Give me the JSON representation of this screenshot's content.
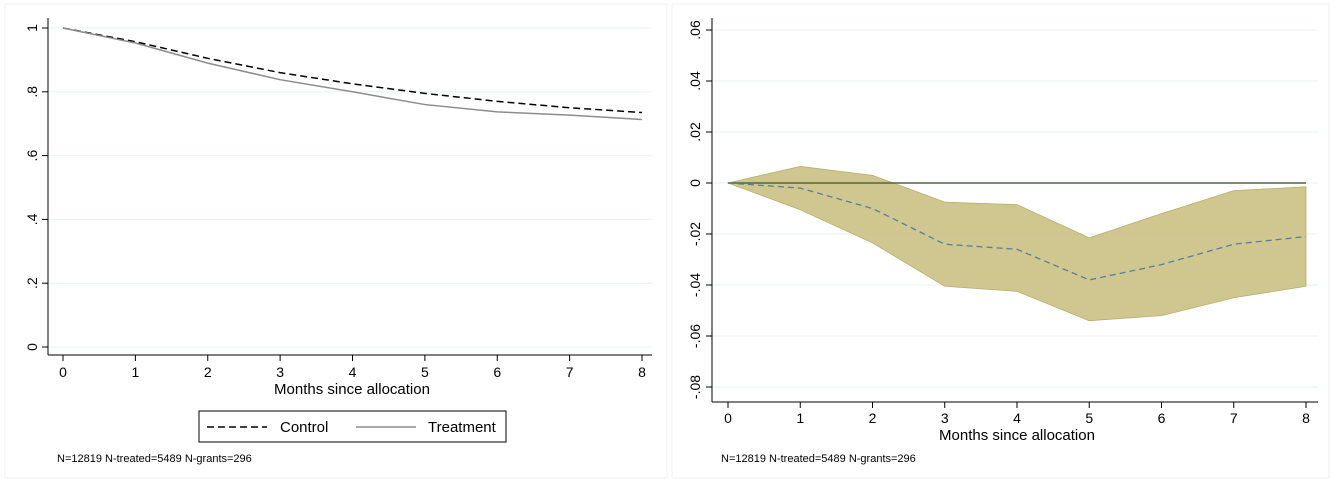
{
  "colors": {
    "background": "#ffffff",
    "gridline": "#eaf2f3",
    "control_line": "#000000",
    "treatment_line": "#8c8c8c",
    "ci_fill": "#c8bd7d",
    "ci_edge": "#b7ad6c",
    "estimate_line": "#5b7f98",
    "zero_line": "#4a6b3a"
  },
  "chart_data": [
    {
      "type": "line",
      "xlabel": "Months since allocation",
      "ylabel": "",
      "x": [
        0,
        1,
        2,
        3,
        4,
        5,
        6,
        7,
        8
      ],
      "xticks": [
        "0",
        "1",
        "2",
        "3",
        "4",
        "5",
        "6",
        "7",
        "8"
      ],
      "yticks": [
        {
          "v": 0,
          "label": "0"
        },
        {
          "v": 0.2,
          "label": ".2"
        },
        {
          "v": 0.4,
          "label": ".4"
        },
        {
          "v": 0.6,
          "label": ".6"
        },
        {
          "v": 0.8,
          "label": ".8"
        },
        {
          "v": 1,
          "label": "1"
        }
      ],
      "xlim": [
        0,
        8
      ],
      "ylim": [
        0,
        1
      ],
      "grid": true,
      "legend_position": "bottom",
      "series": [
        {
          "name": "Control",
          "style": "dashed",
          "values": [
            1.0,
            0.957,
            0.905,
            0.86,
            0.825,
            0.795,
            0.77,
            0.75,
            0.735
          ]
        },
        {
          "name": "Treatment",
          "style": "solid",
          "values": [
            1.0,
            0.953,
            0.89,
            0.838,
            0.8,
            0.76,
            0.737,
            0.727,
            0.713
          ]
        }
      ],
      "note": "N=12819 N-treated=5489 N-grants=296"
    },
    {
      "type": "line",
      "xlabel": "Months since allocation",
      "ylabel": "",
      "x": [
        0,
        1,
        2,
        3,
        4,
        5,
        6,
        7,
        8
      ],
      "xticks": [
        "0",
        "1",
        "2",
        "3",
        "4",
        "5",
        "6",
        "7",
        "8"
      ],
      "yticks": [
        {
          "v": -0.08,
          "label": "-.08"
        },
        {
          "v": -0.06,
          "label": "-.06"
        },
        {
          "v": -0.04,
          "label": "-.04"
        },
        {
          "v": -0.02,
          "label": "-.02"
        },
        {
          "v": 0,
          "label": "0"
        },
        {
          "v": 0.02,
          "label": ".02"
        },
        {
          "v": 0.04,
          "label": ".04"
        },
        {
          "v": 0.06,
          "label": ".06"
        }
      ],
      "xlim": [
        0,
        8
      ],
      "ylim": [
        -0.085,
        0.06
      ],
      "grid": true,
      "estimate": [
        0,
        -0.002,
        -0.01,
        -0.024,
        -0.026,
        -0.038,
        -0.032,
        -0.024,
        -0.021
      ],
      "ci_upper": [
        0,
        0.0065,
        0.003,
        -0.0075,
        -0.0085,
        -0.0215,
        -0.012,
        -0.003,
        -0.0015
      ],
      "ci_lower": [
        0,
        -0.0105,
        -0.0235,
        -0.0405,
        -0.0425,
        -0.054,
        -0.052,
        -0.045,
        -0.0405
      ],
      "reference_line": 0,
      "note": "N=12819 N-treated=5489 N-grants=296"
    }
  ]
}
